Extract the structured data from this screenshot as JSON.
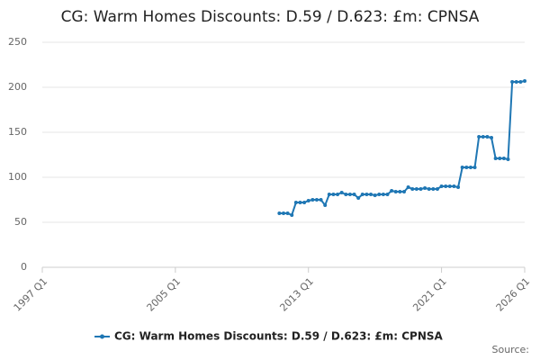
{
  "chart_data": {
    "type": "line",
    "title": "CG: Warm Homes Discounts: D.59 / D.623: £m: CPNSA",
    "source": "Source:",
    "x": [
      2011.25,
      2011.5,
      2011.75,
      2012,
      2012.25,
      2012.5,
      2012.75,
      2013,
      2013.25,
      2013.5,
      2013.75,
      2014,
      2014.25,
      2014.5,
      2014.75,
      2015,
      2015.25,
      2015.5,
      2015.75,
      2016,
      2016.25,
      2016.5,
      2016.75,
      2017,
      2017.25,
      2017.5,
      2017.75,
      2018,
      2018.25,
      2018.5,
      2018.75,
      2019,
      2019.25,
      2019.5,
      2019.75,
      2020,
      2020.25,
      2020.5,
      2020.75,
      2021,
      2021.25,
      2021.5,
      2021.75,
      2022,
      2022.25,
      2022.5,
      2022.75,
      2023,
      2023.25,
      2023.5,
      2023.75,
      2024,
      2024.25,
      2024.5,
      2024.75,
      2025,
      2025.25,
      2025.5,
      2025.75,
      2026
    ],
    "series": [
      {
        "name": "CG: Warm Homes Discounts: D.59 / D.623: £m: CPNSA",
        "color": "#1f77b4",
        "values": [
          60,
          60,
          60,
          58,
          72,
          72,
          72,
          74,
          75,
          75,
          75,
          69,
          81,
          81,
          81,
          83,
          81,
          81,
          81,
          77,
          81,
          81,
          81,
          80,
          81,
          81,
          81,
          85,
          84,
          84,
          84,
          89,
          87,
          87,
          87,
          88,
          87,
          87,
          87,
          90,
          90,
          90,
          90,
          89,
          111,
          111,
          111,
          111,
          145,
          145,
          145,
          144,
          121,
          121,
          121,
          120,
          206,
          206,
          206,
          207
        ]
      }
    ],
    "xlim": [
      1997,
      2026
    ],
    "xticks": [
      {
        "value": 1997,
        "label": "1997 Q1"
      },
      {
        "value": 2005,
        "label": "2005 Q1"
      },
      {
        "value": 2013,
        "label": "2013 Q1"
      },
      {
        "value": 2021,
        "label": "2021 Q1"
      },
      {
        "value": 2026,
        "label": "2026 Q1"
      }
    ],
    "ylim": [
      0,
      250
    ],
    "yticks": [
      0,
      50,
      100,
      150,
      200,
      250
    ],
    "grid": true
  }
}
